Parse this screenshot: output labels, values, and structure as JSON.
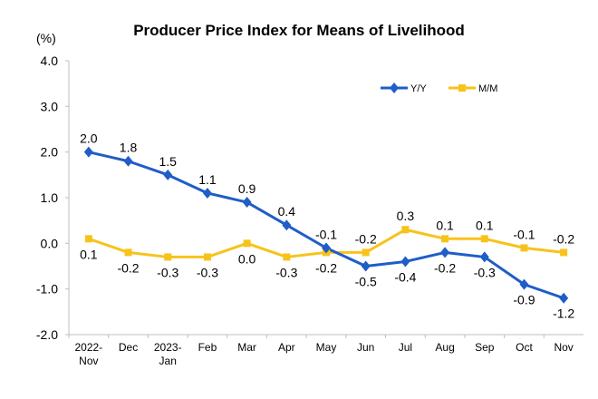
{
  "chart_data": {
    "type": "line",
    "title": "Producer Price Index for Means of Livelihood",
    "ylabel": "(%)",
    "xlabel": "",
    "ylim": [
      -2.0,
      4.0
    ],
    "yticks": [
      "4.0",
      "3.0",
      "2.0",
      "1.0",
      "0.0",
      "-1.0",
      "-2.0"
    ],
    "grid": false,
    "legend_position": "top-right",
    "categories": [
      [
        "2022-",
        "Nov"
      ],
      [
        "Dec"
      ],
      [
        "2023-",
        "Jan"
      ],
      [
        "Feb"
      ],
      [
        "Mar"
      ],
      [
        "Apr"
      ],
      [
        "May"
      ],
      [
        "Jun"
      ],
      [
        "Jul"
      ],
      [
        "Aug"
      ],
      [
        "Sep"
      ],
      [
        "Oct"
      ],
      [
        "Nov"
      ]
    ],
    "series": [
      {
        "name": "Y/Y",
        "color": "#1F5DC8",
        "marker": "diamond",
        "values": [
          2.0,
          1.8,
          1.5,
          1.1,
          0.9,
          0.4,
          -0.1,
          -0.5,
          -0.4,
          -0.2,
          -0.3,
          -0.9,
          -1.2
        ],
        "labels": [
          "2.0",
          "1.8",
          "1.5",
          "1.1",
          "0.9",
          "0.4",
          "-0.1",
          "-0.5",
          "-0.4",
          "-0.2",
          "-0.3",
          "-0.9",
          "-1.2"
        ],
        "label_positions": [
          "above",
          "above",
          "above",
          "above",
          "above",
          "above",
          "above",
          "below",
          "below",
          "below",
          "below",
          "below",
          "below"
        ]
      },
      {
        "name": "M/M",
        "color": "#F7C31B",
        "marker": "square",
        "values": [
          0.1,
          -0.2,
          -0.3,
          -0.3,
          0.0,
          -0.3,
          -0.2,
          -0.2,
          0.3,
          0.1,
          0.1,
          -0.1,
          -0.2
        ],
        "labels": [
          "0.1",
          "-0.2",
          "-0.3",
          "-0.3",
          "0.0",
          "-0.3",
          "-0.2",
          "-0.2",
          "0.3",
          "0.1",
          "0.1",
          "-0.1",
          "-0.2"
        ],
        "label_positions": [
          "below",
          "below",
          "below",
          "below",
          "below",
          "below",
          "below",
          "above",
          "above",
          "above",
          "above",
          "above",
          "above"
        ]
      }
    ]
  }
}
